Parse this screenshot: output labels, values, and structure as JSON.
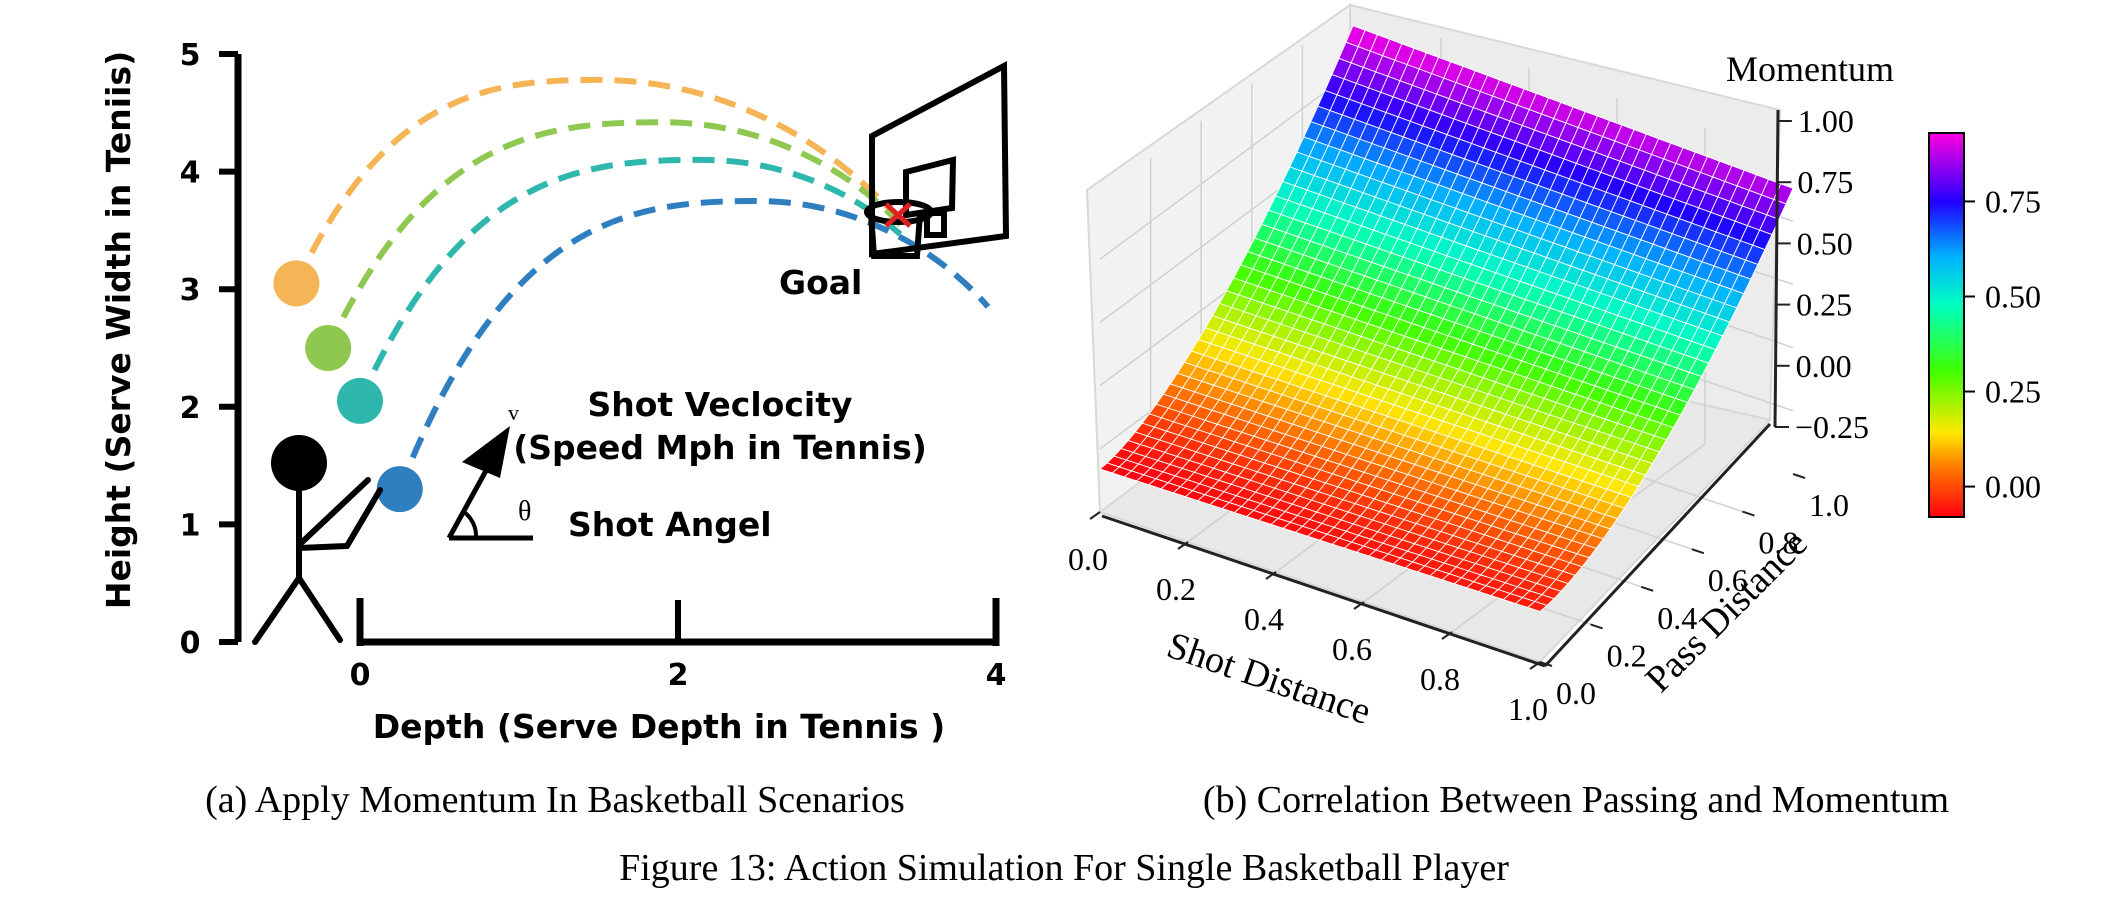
{
  "figure_caption": "Figure 13: Action Simulation For Single Basketball Player",
  "chart_data": [
    {
      "type": "line",
      "caption": "(a) Apply Momentum In Basketball Scenarios",
      "xlabel": "Depth (Serve Depth in Tennis )",
      "ylabel": "Height (Serve Width in Teniis)",
      "x_ticks": [
        "0",
        "2",
        "4"
      ],
      "y_ticks": [
        "0",
        "1",
        "2",
        "3",
        "4",
        "5"
      ],
      "xlim": [
        -0.9,
        4
      ],
      "ylim": [
        0,
        5
      ],
      "grid": false,
      "annotations": {
        "goal": "Goal",
        "velocity_title": "Shot Veclocity",
        "velocity_sub": "(Speed Mph in Tennis)",
        "angle": "Shot Angel",
        "v_symbol": "v",
        "theta_symbol": "θ"
      },
      "series": [
        {
          "color": "#f5b556",
          "start": [
            -0.4,
            3.05
          ],
          "peak": [
            1.5,
            4.78
          ],
          "end": [
            3.45,
            3.5
          ]
        },
        {
          "color": "#8fc850",
          "start": [
            -0.2,
            2.5
          ],
          "peak": [
            1.9,
            4.42
          ],
          "end": [
            3.4,
            3.55
          ]
        },
        {
          "color": "#2fb7ae",
          "start": [
            0.0,
            2.05
          ],
          "peak": [
            2.15,
            4.1
          ],
          "end": [
            3.45,
            3.4
          ]
        },
        {
          "color": "#2f7fc0",
          "start": [
            0.25,
            1.3
          ],
          "peak": [
            2.5,
            3.75
          ],
          "end": [
            3.95,
            2.85
          ]
        }
      ]
    },
    {
      "type": "surface",
      "caption": "(b) Correlation Between Passing and Momentum",
      "xlabel": "Shot Distance",
      "ylabel": "Pass Distance",
      "zlabel": "Momentum",
      "x_ticks": [
        "0.0",
        "0.2",
        "0.4",
        "0.6",
        "0.8",
        "1.0"
      ],
      "y_ticks": [
        "0.0",
        "0.2",
        "0.4",
        "0.6",
        "0.8",
        "1.0"
      ],
      "z_ticks": [
        "−0.25",
        "0.00",
        "0.25",
        "0.50",
        "0.75",
        "1.00"
      ],
      "xlim": [
        0,
        1
      ],
      "ylim": [
        0,
        1
      ],
      "zlim": [
        -0.25,
        1.0
      ],
      "colormap": "gist_rainbow",
      "colorbar_ticks": [
        "0.00",
        "0.25",
        "0.50",
        "0.75"
      ],
      "colorbar_range": [
        -0.08,
        0.93
      ],
      "surface": {
        "z_at_shot0_pass0": -0.08,
        "z_at_shot1_pass0": -0.05,
        "z_at_shot0_pass1": 0.93,
        "z_at_shot1_pass1": 0.88
      }
    }
  ]
}
